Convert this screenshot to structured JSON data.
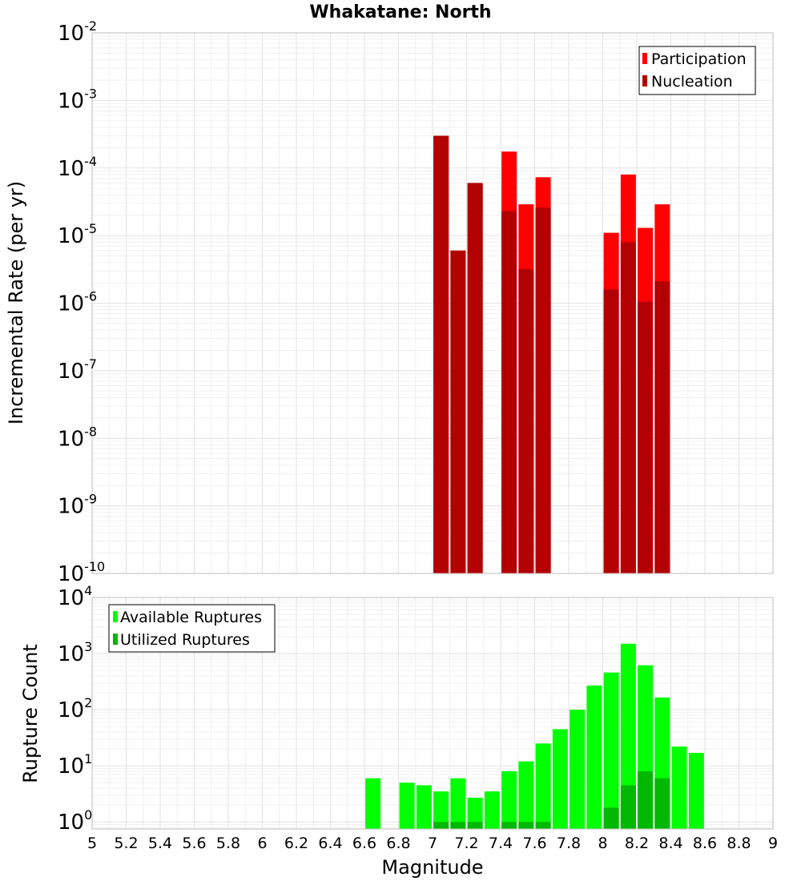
{
  "chart_data": [
    {
      "type": "bar",
      "title": "Whakatane: North",
      "xlabel": "Magnitude",
      "ylabel": "Incremental Rate (per yr)",
      "yscale": "log",
      "ylim": [
        1e-10,
        0.01
      ],
      "xlim": [
        5,
        9
      ],
      "grid": true,
      "legend_position": "top-right",
      "y_tick_labels": [
        {
          "base": "10",
          "exp": "-10",
          "value": 1e-10
        },
        {
          "base": "10",
          "exp": "-9",
          "value": 1e-09
        },
        {
          "base": "10",
          "exp": "-8",
          "value": 1e-08
        },
        {
          "base": "10",
          "exp": "-7",
          "value": 1e-07
        },
        {
          "base": "10",
          "exp": "-6",
          "value": 1e-06
        },
        {
          "base": "10",
          "exp": "-5",
          "value": 1e-05
        },
        {
          "base": "10",
          "exp": "-4",
          "value": 0.0001
        },
        {
          "base": "10",
          "exp": "-3",
          "value": 0.001
        },
        {
          "base": "10",
          "exp": "-2",
          "value": 0.01
        }
      ],
      "x": [
        7.05,
        7.15,
        7.25,
        7.45,
        7.55,
        7.65,
        8.05,
        8.15,
        8.25,
        8.35
      ],
      "series": [
        {
          "name": "Participation",
          "color": "#ff0000",
          "values": [
            0.0003,
            6e-06,
            6e-05,
            0.000175,
            2.9e-05,
            7.3e-05,
            1.1e-05,
            8e-05,
            1.3e-05,
            2.9e-05
          ]
        },
        {
          "name": "Nucleation",
          "color": "#b30000",
          "values": [
            0.0003,
            6e-06,
            6e-05,
            2.3e-05,
            3.2e-06,
            2.6e-05,
            1.6e-06,
            8e-06,
            1.05e-06,
            2.1e-06
          ]
        }
      ]
    },
    {
      "type": "bar",
      "xlabel": "Magnitude",
      "ylabel": "Rupture Count",
      "yscale": "log",
      "ylim": [
        0.75,
        10000
      ],
      "xlim": [
        5,
        9
      ],
      "grid": true,
      "legend_position": "top-left",
      "y_tick_labels": [
        {
          "base": "10",
          "exp": "0",
          "value": 1
        },
        {
          "base": "10",
          "exp": "1",
          "value": 10
        },
        {
          "base": "10",
          "exp": "2",
          "value": 100
        },
        {
          "base": "10",
          "exp": "3",
          "value": 1000
        },
        {
          "base": "10",
          "exp": "4",
          "value": 10000
        }
      ],
      "x_tick_labels": [
        "5",
        "5.2",
        "5.4",
        "5.6",
        "5.8",
        "6",
        "6.2",
        "6.4",
        "6.6",
        "6.8",
        "7",
        "7.2",
        "7.4",
        "7.6",
        "7.8",
        "8",
        "8.2",
        "8.4",
        "8.6",
        "8.8",
        "9"
      ],
      "x": [
        6.65,
        6.85,
        6.95,
        7.05,
        7.15,
        7.25,
        7.35,
        7.45,
        7.55,
        7.65,
        7.75,
        7.85,
        7.95,
        8.05,
        8.15,
        8.25,
        8.35,
        8.45,
        8.55
      ],
      "series": [
        {
          "name": "Available Ruptures",
          "color": "#00ff00",
          "values": [
            6,
            5,
            4.5,
            3.5,
            6,
            2.7,
            3.5,
            8,
            12,
            25,
            45,
            100,
            270,
            460,
            1500,
            620,
            165,
            22,
            17
          ]
        },
        {
          "name": "Utilized Ruptures",
          "color": "#00b800",
          "values": [
            0,
            0,
            0,
            1,
            1,
            1,
            0,
            1,
            1,
            1,
            0,
            0,
            0,
            1.8,
            4.5,
            8,
            6,
            0,
            0
          ]
        }
      ]
    }
  ]
}
